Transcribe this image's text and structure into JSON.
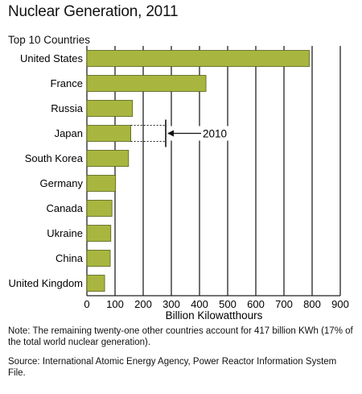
{
  "title": "Nuclear Generation, 2011",
  "subtitle": "Top 10 Countries",
  "note": "Note: The remaining twenty-one other countries account for 417 billion KWh (17% of the total world nuclear generation).",
  "source": "Source: International Atomic Energy Agency, Power Reactor Information System File.",
  "colors": {
    "bar": "#a8b63f",
    "bar_edge": "#55601a",
    "grid": "#222222"
  },
  "chart_data": {
    "type": "bar",
    "orientation": "horizontal",
    "title": "Nuclear Generation, 2011",
    "subtitle": "Top 10 Countries",
    "xlabel": "Billion Kilowatthours",
    "ylabel": "",
    "xlim": [
      0,
      900
    ],
    "xticks": [
      0,
      100,
      200,
      300,
      400,
      500,
      600,
      700,
      800,
      900
    ],
    "grid": true,
    "categories": [
      "United States",
      "France",
      "Russia",
      "Japan",
      "South Korea",
      "Germany",
      "Canada",
      "Ukraine",
      "China",
      "United Kingdom"
    ],
    "values": [
      790,
      423,
      162,
      156,
      148,
      102,
      89,
      85,
      83,
      63
    ],
    "annotation": {
      "category": "Japan",
      "label": "2010",
      "value": 280
    }
  }
}
